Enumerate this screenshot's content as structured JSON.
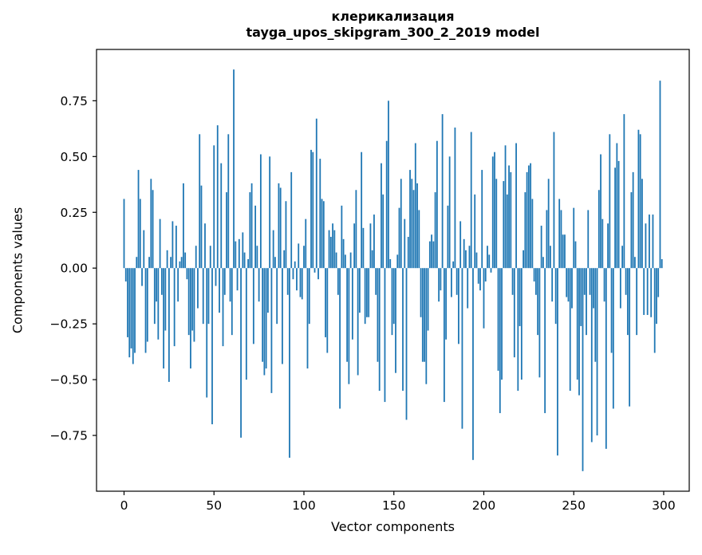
{
  "figure": {
    "title_line1": "клерикализация",
    "title_line2": "tayga_upos_skipgram_300_2_2019 model",
    "xlabel": "Vector components",
    "ylabel": "Components values",
    "background": "#ffffff"
  },
  "chart_data": {
    "type": "bar",
    "title": "клерикализация\ntayga_upos_skipgram_300_2_2019 model",
    "xlabel": "Vector components",
    "ylabel": "Components values",
    "bar_color": "#1f77b4",
    "axis_color": "#000000",
    "grid": false,
    "legend": null,
    "n_components": 300,
    "x_start": 0,
    "x_step": 1,
    "xlim": [
      -15.3,
      314.2
    ],
    "ylim": [
      -1.0,
      0.98
    ],
    "xticks": [
      0,
      50,
      100,
      150,
      200,
      250,
      300
    ],
    "xtick_labels": [
      "0",
      "50",
      "100",
      "150",
      "200",
      "250",
      "300"
    ],
    "yticks": [
      0.75,
      0.5,
      0.25,
      0.0,
      -0.25,
      -0.5,
      -0.75
    ],
    "ytick_labels": [
      "0.75",
      "0.50",
      "0.25",
      "0.00",
      "−0.25",
      "−0.50",
      "−0.75"
    ],
    "values": [
      0.31,
      -0.06,
      -0.31,
      -0.4,
      -0.36,
      -0.43,
      -0.38,
      0.05,
      0.44,
      0.31,
      -0.08,
      0.17,
      -0.38,
      -0.33,
      0.05,
      0.4,
      0.35,
      -0.25,
      -0.15,
      -0.32,
      0.22,
      -0.12,
      -0.45,
      -0.28,
      0.08,
      -0.51,
      0.05,
      0.21,
      -0.35,
      0.19,
      -0.15,
      0.03,
      0.05,
      0.38,
      0.07,
      -0.05,
      -0.3,
      -0.45,
      -0.28,
      -0.33,
      0.1,
      -0.18,
      0.6,
      0.37,
      -0.25,
      0.2,
      -0.58,
      -0.25,
      0.1,
      -0.7,
      0.55,
      -0.08,
      0.64,
      -0.2,
      0.47,
      -0.35,
      -0.12,
      0.34,
      0.6,
      -0.15,
      -0.3,
      0.89,
      0.12,
      -0.1,
      0.13,
      -0.76,
      0.16,
      0.07,
      -0.5,
      0.04,
      0.34,
      0.38,
      -0.34,
      0.28,
      0.1,
      -0.15,
      0.51,
      -0.42,
      -0.48,
      -0.45,
      -0.2,
      0.5,
      -0.56,
      0.17,
      0.05,
      -0.25,
      0.38,
      0.36,
      -0.43,
      0.08,
      0.3,
      -0.12,
      -0.85,
      0.43,
      -0.05,
      0.03,
      -0.1,
      0.11,
      -0.13,
      -0.14,
      0.1,
      0.22,
      -0.45,
      -0.25,
      0.53,
      0.52,
      -0.02,
      0.67,
      -0.05,
      0.49,
      0.31,
      0.3,
      -0.31,
      -0.38,
      0.17,
      0.14,
      0.2,
      0.17,
      0.07,
      -0.12,
      -0.63,
      0.28,
      0.13,
      0.06,
      -0.42,
      -0.52,
      0.07,
      -0.32,
      0.2,
      0.35,
      -0.48,
      -0.2,
      0.52,
      0.18,
      -0.25,
      -0.22,
      -0.22,
      0.2,
      0.08,
      0.24,
      -0.12,
      -0.42,
      -0.55,
      0.47,
      0.33,
      -0.6,
      0.57,
      0.75,
      0.04,
      -0.3,
      -0.25,
      -0.47,
      0.06,
      0.27,
      0.4,
      -0.55,
      0.22,
      -0.68,
      0.14,
      0.44,
      0.4,
      0.35,
      0.56,
      0.38,
      0.26,
      -0.22,
      -0.42,
      -0.42,
      -0.52,
      -0.28,
      0.12,
      0.15,
      0.12,
      0.34,
      0.57,
      -0.15,
      -0.1,
      0.69,
      -0.6,
      -0.32,
      0.28,
      0.5,
      -0.13,
      0.03,
      0.63,
      -0.12,
      -0.34,
      0.21,
      -0.72,
      0.13,
      0.08,
      -0.18,
      0.1,
      0.61,
      -0.86,
      0.33,
      0.07,
      -0.07,
      -0.1,
      0.44,
      -0.27,
      -0.06,
      0.1,
      0.06,
      -0.02,
      0.5,
      0.52,
      0.4,
      -0.46,
      -0.65,
      -0.5,
      0.39,
      0.55,
      0.33,
      0.46,
      0.43,
      -0.12,
      -0.4,
      0.56,
      -0.55,
      -0.26,
      -0.5,
      0.08,
      0.34,
      0.43,
      0.46,
      0.47,
      0.31,
      -0.06,
      -0.12,
      -0.3,
      -0.49,
      0.19,
      0.05,
      -0.65,
      0.26,
      0.4,
      0.1,
      -0.15,
      0.61,
      -0.25,
      -0.84,
      0.31,
      0.26,
      0.15,
      0.15,
      -0.13,
      -0.15,
      -0.55,
      -0.18,
      0.27,
      0.12,
      -0.5,
      -0.57,
      -0.26,
      -0.91,
      -0.12,
      -0.3,
      0.26,
      -0.12,
      -0.78,
      -0.18,
      -0.42,
      -0.75,
      0.35,
      0.51,
      0.22,
      -0.15,
      -0.81,
      0.2,
      0.6,
      -0.38,
      -0.63,
      0.45,
      0.56,
      0.48,
      -0.18,
      0.1,
      0.69,
      -0.12,
      -0.3,
      -0.62,
      0.34,
      0.43,
      0.05,
      -0.3,
      0.62,
      0.6,
      0.4,
      -0.21,
      0.2,
      -0.21,
      0.24,
      -0.22,
      0.24,
      -0.38,
      -0.25,
      -0.13,
      0.84,
      0.04
    ]
  }
}
